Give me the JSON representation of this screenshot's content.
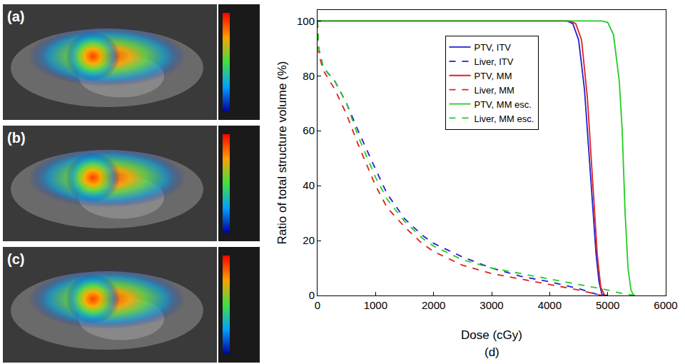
{
  "panels": [
    {
      "label": "(a)"
    },
    {
      "label": "(b)"
    },
    {
      "label": "(c)"
    }
  ],
  "chart_data": {
    "type": "line",
    "panel_label": "(d)",
    "x_label": "Dose (cGy)",
    "y_label": "Ratio of total structure volume (%)",
    "xlim": [
      0,
      6000
    ],
    "xticks": [
      0,
      1000,
      2000,
      3000,
      4000,
      5000,
      6000
    ],
    "ylim": [
      0,
      104
    ],
    "yticks": [
      0,
      20,
      40,
      60,
      80,
      100
    ],
    "grid": false,
    "legend": "upper center",
    "series": [
      {
        "name": "PTV, ITV",
        "color": "#2020d0",
        "line_style": "solid",
        "x": [
          0,
          4300,
          4400,
          4500,
          4600,
          4700,
          4800,
          4850,
          4900,
          4950
        ],
        "values": [
          100,
          100,
          99,
          93,
          75,
          45,
          15,
          5,
          0.5,
          0
        ]
      },
      {
        "name": "Liver, ITV",
        "color": "#2020d0",
        "line_style": "dash",
        "x": [
          0,
          20,
          100,
          300,
          500,
          700,
          1000,
          1200,
          1500,
          1800,
          2000,
          2500,
          3000,
          3500,
          4000,
          4500,
          4800,
          5000
        ],
        "values": [
          100,
          90,
          83,
          78,
          70,
          60,
          46,
          37,
          28,
          22,
          19,
          14,
          10,
          7,
          5,
          2.5,
          0.5,
          0
        ]
      },
      {
        "name": "PTV, MM",
        "color": "#e02020",
        "line_style": "solid",
        "x": [
          0,
          4350,
          4450,
          4550,
          4650,
          4750,
          4820,
          4880,
          4950
        ],
        "values": [
          100,
          100,
          99,
          93,
          72,
          40,
          15,
          3,
          0
        ]
      },
      {
        "name": "Liver, MM",
        "color": "#e02020",
        "line_style": "dash",
        "x": [
          0,
          20,
          100,
          300,
          500,
          700,
          1000,
          1200,
          1500,
          1800,
          2000,
          2500,
          3000,
          3500,
          4000,
          4500,
          4800,
          4900
        ],
        "values": [
          100,
          88,
          82,
          75,
          66,
          55,
          40,
          32,
          25,
          19,
          16,
          11,
          8,
          6,
          4,
          2,
          0.5,
          0
        ]
      },
      {
        "name": "PTV, MM esc.",
        "color": "#22cc22",
        "line_style": "solid",
        "x": [
          0,
          4900,
          5000,
          5100,
          5200,
          5250,
          5300,
          5350,
          5400,
          5450
        ],
        "values": [
          100,
          100,
          99.5,
          95,
          78,
          60,
          30,
          10,
          2,
          0
        ]
      },
      {
        "name": "Liver, MM esc.",
        "color": "#22cc22",
        "line_style": "dash",
        "x": [
          0,
          20,
          100,
          300,
          500,
          700,
          1000,
          1200,
          1500,
          1800,
          2000,
          2500,
          3000,
          3500,
          4000,
          4500,
          5000,
          5300,
          5500
        ],
        "values": [
          100,
          90,
          83,
          78,
          70,
          58,
          43,
          35,
          27,
          21,
          18,
          13,
          10,
          8,
          6,
          4,
          2,
          0.5,
          0
        ]
      }
    ]
  }
}
